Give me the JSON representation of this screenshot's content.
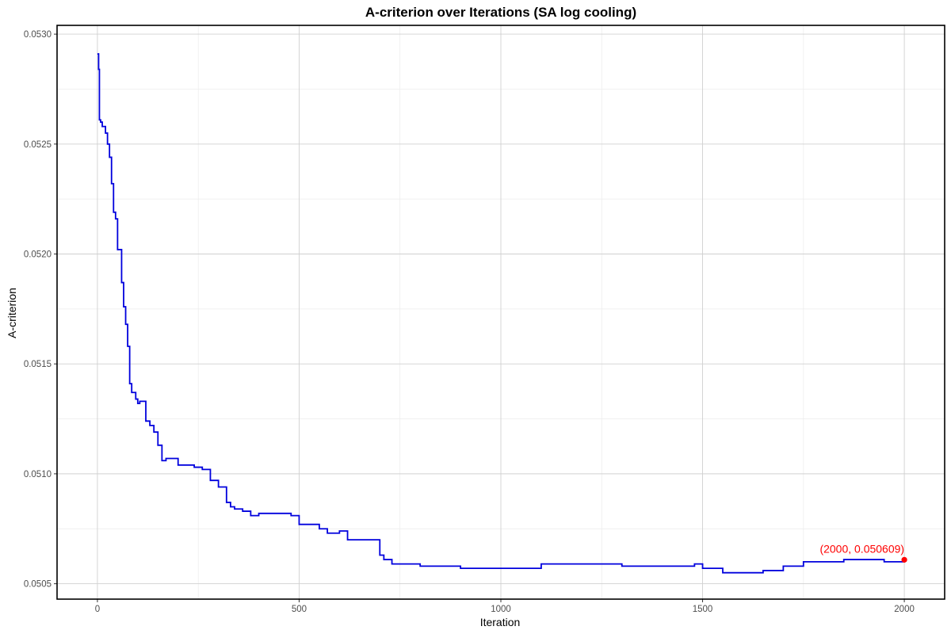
{
  "chart_data": {
    "type": "line",
    "title": "A-criterion over Iterations (SA log cooling)",
    "xlabel": "Iteration",
    "ylabel": "A-criterion",
    "xlim": [
      -100,
      2100
    ],
    "ylim": [
      0.05043,
      0.05304
    ],
    "x_ticks": [
      0,
      500,
      1000,
      1500,
      2000
    ],
    "y_ticks": [
      0.0505,
      0.051,
      0.0515,
      0.052,
      0.0525,
      0.053
    ],
    "x_tick_labels": [
      "0",
      "500",
      "1000",
      "1500",
      "2000"
    ],
    "y_tick_labels": [
      "0.0505",
      "0.0510",
      "0.0515",
      "0.0520",
      "0.0525",
      "0.0530"
    ],
    "grid": true,
    "line_color": "#0000dd",
    "highlight_color": "#ff0000",
    "series": [
      {
        "x": [
          0,
          3,
          5,
          8,
          12,
          20,
          25,
          30,
          35,
          40,
          45,
          50,
          60,
          65,
          70,
          75,
          80,
          85,
          95,
          100,
          105,
          110,
          120,
          130,
          140,
          150,
          160,
          170,
          180,
          190,
          200,
          210,
          220,
          240,
          260,
          280,
          300,
          320,
          330,
          340,
          360,
          380,
          400,
          420,
          450,
          480,
          500,
          520,
          550,
          570,
          600,
          620,
          650,
          670,
          700,
          710,
          730,
          750,
          800,
          850,
          900,
          950,
          1000,
          1050,
          1100,
          1150,
          1200,
          1250,
          1300,
          1350,
          1400,
          1450,
          1480,
          1500,
          1550,
          1600,
          1650,
          1700,
          1750,
          1800,
          1850,
          1900,
          1950,
          2000
        ],
        "y": [
          0.05291,
          0.05284,
          0.05261,
          0.0526,
          0.05258,
          0.05255,
          0.0525,
          0.05244,
          0.05232,
          0.05219,
          0.05216,
          0.05202,
          0.05187,
          0.05176,
          0.05168,
          0.05158,
          0.05141,
          0.05137,
          0.05134,
          0.05132,
          0.05133,
          0.05133,
          0.05124,
          0.05122,
          0.05119,
          0.05113,
          0.05106,
          0.05107,
          0.05107,
          0.05107,
          0.05104,
          0.05104,
          0.05104,
          0.05103,
          0.05102,
          0.05097,
          0.05094,
          0.05087,
          0.05085,
          0.05084,
          0.05083,
          0.05081,
          0.05082,
          0.05082,
          0.05082,
          0.05081,
          0.05077,
          0.05077,
          0.05075,
          0.05073,
          0.05074,
          0.0507,
          0.0507,
          0.0507,
          0.05063,
          0.05061,
          0.05059,
          0.05059,
          0.05058,
          0.05058,
          0.05057,
          0.05057,
          0.05057,
          0.05057,
          0.05059,
          0.05059,
          0.05059,
          0.05059,
          0.05058,
          0.05058,
          0.05058,
          0.05058,
          0.05059,
          0.05057,
          0.05055,
          0.05055,
          0.05056,
          0.05058,
          0.0506,
          0.0506,
          0.05061,
          0.05061,
          0.0506,
          0.050609
        ]
      }
    ],
    "annotation": {
      "text": "(2000, 0.050609)",
      "x": 2000,
      "y": 0.050609
    }
  }
}
